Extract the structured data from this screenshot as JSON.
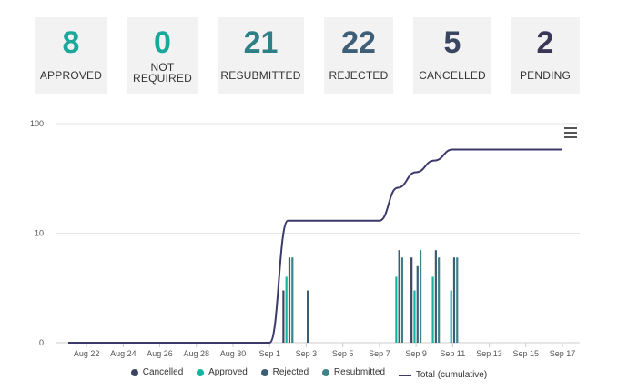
{
  "cards": [
    {
      "value": "8",
      "label": "APPROVED",
      "color": "#1aa89b"
    },
    {
      "value": "0",
      "label_line1": "NOT",
      "label_line2": "REQUIRED",
      "color": "#1aa89b"
    },
    {
      "value": "21",
      "label": "RESUBMITTED",
      "color": "#2f7f86"
    },
    {
      "value": "22",
      "label": "REJECTED",
      "color": "#3f5f78"
    },
    {
      "value": "5",
      "label": "CANCELLED",
      "color": "#3a4560"
    },
    {
      "value": "2",
      "label": "PENDING",
      "color": "#3b3757"
    }
  ],
  "colors": {
    "cancelled": "#3d4660",
    "approved": "#17b3a2",
    "rejected": "#3b5e74",
    "resubmitted": "#3e8187",
    "total": "#3b3a6a",
    "grid": "#e6e6e6",
    "axis": "#cccccc"
  },
  "chart_data": {
    "type": "bar",
    "title": "",
    "xlabel": "",
    "ylabel": "",
    "y_scale": "log",
    "y_ticks": [
      {
        "value": 1,
        "label": "0"
      },
      {
        "value": 10,
        "label": "10"
      },
      {
        "value": 100,
        "label": "100"
      }
    ],
    "x_range": [
      "2022-08-21",
      "2022-09-17"
    ],
    "x_ticks": [
      "Aug 22",
      "Aug 24",
      "Aug 26",
      "Aug 28",
      "Aug 30",
      "Sep 1",
      "Sep 3",
      "Sep 5",
      "Sep 7",
      "Sep 9",
      "Sep 11",
      "Sep 13",
      "Sep 15",
      "Sep 17"
    ],
    "x_tick_dates": [
      "2022-08-22",
      "2022-08-24",
      "2022-08-26",
      "2022-08-28",
      "2022-08-30",
      "2022-09-01",
      "2022-09-03",
      "2022-09-05",
      "2022-09-07",
      "2022-09-09",
      "2022-09-11",
      "2022-09-13",
      "2022-09-15",
      "2022-09-17"
    ],
    "legend_position": "bottom",
    "bar_groups": [
      {
        "date": "2022-09-02",
        "values": {
          "Cancelled": 2,
          "Approved": 3,
          "Rejected": 5,
          "Resubmitted": 5
        }
      },
      {
        "date": "2022-09-03",
        "values": {
          "Cancelled": 0,
          "Approved": 0,
          "Rejected": 2,
          "Resubmitted": 0
        }
      },
      {
        "date": "2022-09-08",
        "values": {
          "Cancelled": 0,
          "Approved": 3,
          "Rejected": 6,
          "Resubmitted": 5
        }
      },
      {
        "date": "2022-09-09",
        "values": {
          "Cancelled": 5,
          "Approved": 2,
          "Rejected": 4,
          "Resubmitted": 6
        }
      },
      {
        "date": "2022-09-10",
        "values": {
          "Cancelled": 0,
          "Approved": 3,
          "Rejected": 6,
          "Resubmitted": 5
        }
      },
      {
        "date": "2022-09-11",
        "values": {
          "Cancelled": 0,
          "Approved": 2,
          "Rejected": 5,
          "Resubmitted": 5
        }
      }
    ],
    "total_cumulative": [
      {
        "date": "2022-08-21",
        "value": 1
      },
      {
        "date": "2022-09-01",
        "value": 1
      },
      {
        "date": "2022-09-02",
        "value": 13
      },
      {
        "date": "2022-09-07",
        "value": 13
      },
      {
        "date": "2022-09-08",
        "value": 26
      },
      {
        "date": "2022-09-09",
        "value": 36
      },
      {
        "date": "2022-09-10",
        "value": 46
      },
      {
        "date": "2022-09-11",
        "value": 58
      },
      {
        "date": "2022-09-17",
        "value": 58
      }
    ],
    "series": [
      {
        "name": "Cancelled",
        "kind": "bar"
      },
      {
        "name": "Approved",
        "kind": "bar"
      },
      {
        "name": "Rejected",
        "kind": "bar"
      },
      {
        "name": "Resubmitted",
        "kind": "bar"
      },
      {
        "name": "Total (cumulative)",
        "kind": "line"
      }
    ]
  }
}
